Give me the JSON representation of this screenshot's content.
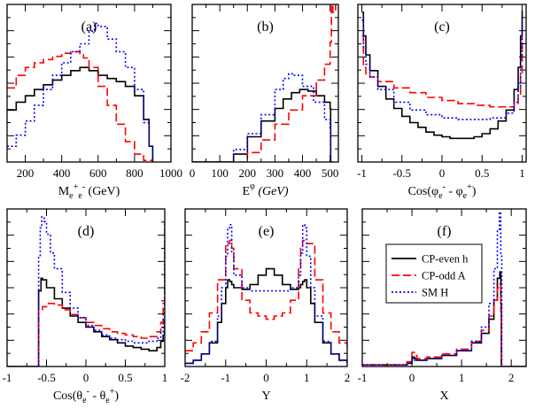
{
  "chart_data": [
    {
      "type": "line",
      "label": "(a)",
      "xlabel_main": "M",
      "xlabel_sub": "e",
      "xlabel_sup1": "+",
      "xlabel_sub2": "e",
      "xlabel_sup2": "-",
      "xlabel_unit": "(GeV)",
      "xlim": [
        100,
        1000
      ],
      "ylim": [
        0,
        1
      ],
      "xticks": [
        200,
        400,
        600,
        800,
        1000
      ],
      "xtick_labels": [
        "200",
        "400",
        "600",
        "800",
        "1000"
      ],
      "series": [
        {
          "name": "CP-even h",
          "x": [
            100,
            150,
            200,
            250,
            300,
            350,
            400,
            450,
            500,
            520,
            550,
            600,
            650,
            700,
            750,
            800,
            850,
            880,
            900
          ],
          "y": [
            0.33,
            0.38,
            0.42,
            0.46,
            0.49,
            0.52,
            0.55,
            0.58,
            0.6,
            0.6,
            0.58,
            0.55,
            0.53,
            0.51,
            0.48,
            0.42,
            0.27,
            0.1,
            0.0
          ]
        },
        {
          "name": "CP-odd A",
          "x": [
            100,
            150,
            200,
            250,
            300,
            350,
            400,
            450,
            500,
            520,
            550,
            600,
            650,
            700,
            750,
            800,
            850,
            900
          ],
          "y": [
            0.47,
            0.55,
            0.6,
            0.63,
            0.65,
            0.67,
            0.69,
            0.7,
            0.68,
            0.66,
            0.6,
            0.48,
            0.36,
            0.24,
            0.13,
            0.05,
            0.01,
            0.0
          ]
        },
        {
          "name": "SM H",
          "x": [
            100,
            150,
            200,
            250,
            300,
            350,
            400,
            450,
            500,
            550,
            580,
            600,
            650,
            700,
            750,
            800,
            850,
            880,
            900
          ],
          "y": [
            0.1,
            0.17,
            0.26,
            0.36,
            0.46,
            0.55,
            0.63,
            0.7,
            0.75,
            0.83,
            0.88,
            0.86,
            0.78,
            0.7,
            0.6,
            0.46,
            0.25,
            0.1,
            0.0
          ]
        }
      ]
    },
    {
      "type": "line",
      "label": "(b)",
      "xlabel_main": "E",
      "xlabel_sup1": "φ",
      "xlabel_unit": "(GeV)",
      "xlim": [
        0,
        530
      ],
      "ylim": [
        0,
        1
      ],
      "xticks": [
        0,
        100,
        200,
        300,
        400,
        500
      ],
      "xtick_labels": [
        "0",
        "100",
        "200",
        "300",
        "400",
        "500"
      ],
      "series": [
        {
          "name": "CP-even h",
          "x": [
            0,
            120,
            150,
            200,
            250,
            300,
            330,
            360,
            390,
            420,
            450,
            480,
            500,
            502,
            510
          ],
          "y": [
            0,
            0,
            0.05,
            0.16,
            0.26,
            0.34,
            0.4,
            0.44,
            0.46,
            0.45,
            0.42,
            0.38,
            0.34,
            0.0,
            0.0
          ]
        },
        {
          "name": "CP-odd A",
          "x": [
            0,
            150,
            200,
            250,
            300,
            350,
            400,
            450,
            480,
            500,
            505,
            510,
            520
          ],
          "y": [
            0,
            0,
            0.06,
            0.14,
            0.24,
            0.33,
            0.42,
            0.52,
            0.62,
            0.76,
            1.0,
            0.95,
            1.0
          ]
        },
        {
          "name": "SM H",
          "x": [
            0,
            110,
            150,
            200,
            250,
            300,
            330,
            350,
            370,
            400,
            440,
            480,
            500,
            502,
            510
          ],
          "y": [
            0,
            0,
            0.08,
            0.18,
            0.3,
            0.46,
            0.53,
            0.56,
            0.55,
            0.48,
            0.38,
            0.27,
            0.2,
            0.0,
            0.0
          ]
        }
      ]
    },
    {
      "type": "line",
      "label": "(c)",
      "xlabel_main": "Cos(φ",
      "xlabel_sub": "e",
      "xlabel_sup1": "-",
      "xlabel_mid": " - φ",
      "xlabel_sub2": "e",
      "xlabel_sup2": "+",
      "xlabel_unit": ")",
      "xlim": [
        -1.05,
        1.05
      ],
      "ylim": [
        0,
        1
      ],
      "xticks": [
        -1,
        -0.5,
        0,
        0.5,
        1
      ],
      "xtick_labels": [
        "-1",
        "-0.5",
        "0",
        "0.5",
        "1"
      ],
      "series": [
        {
          "name": "CP-even h",
          "x": [
            -1,
            -0.98,
            -0.95,
            -0.9,
            -0.8,
            -0.7,
            -0.6,
            -0.5,
            -0.4,
            -0.3,
            -0.2,
            -0.1,
            0,
            0.1,
            0.2,
            0.3,
            0.4,
            0.5,
            0.6,
            0.7,
            0.8,
            0.9,
            0.95,
            0.98,
            1
          ],
          "y": [
            0.95,
            0.8,
            0.68,
            0.58,
            0.48,
            0.4,
            0.34,
            0.29,
            0.25,
            0.22,
            0.19,
            0.17,
            0.16,
            0.15,
            0.15,
            0.15,
            0.16,
            0.18,
            0.21,
            0.26,
            0.33,
            0.46,
            0.6,
            0.8,
            0.96
          ]
        },
        {
          "name": "CP-odd A",
          "x": [
            -1,
            -0.98,
            -0.95,
            -0.9,
            -0.8,
            -0.6,
            -0.4,
            -0.2,
            0,
            0.2,
            0.4,
            0.6,
            0.8,
            0.9,
            0.95,
            0.98,
            1
          ],
          "y": [
            0.8,
            0.6,
            0.56,
            0.54,
            0.51,
            0.47,
            0.44,
            0.41,
            0.39,
            0.37,
            0.36,
            0.35,
            0.35,
            0.37,
            0.42,
            0.55,
            0.8
          ]
        },
        {
          "name": "SM H",
          "x": [
            -1,
            -0.98,
            -0.95,
            -0.9,
            -0.8,
            -0.6,
            -0.4,
            -0.2,
            0,
            0.2,
            0.4,
            0.6,
            0.8,
            0.9,
            0.95,
            0.98,
            1
          ],
          "y": [
            0.9,
            0.72,
            0.62,
            0.54,
            0.46,
            0.38,
            0.33,
            0.3,
            0.28,
            0.27,
            0.27,
            0.28,
            0.31,
            0.38,
            0.48,
            0.68,
            0.9
          ]
        }
      ]
    },
    {
      "type": "line",
      "label": "(d)",
      "xlabel_main": "Cos(θ",
      "xlabel_sub": "e",
      "xlabel_sup1": "-",
      "xlabel_mid": " - θ",
      "xlabel_sub2": "e",
      "xlabel_sup2": "+",
      "xlabel_unit": ")",
      "xlim": [
        -1,
        1
      ],
      "ylim": [
        0,
        1
      ],
      "xticks": [
        -1,
        -0.5,
        0,
        0.5,
        1
      ],
      "xtick_labels": [
        "-1",
        "-0.5",
        "0",
        "0.5",
        "1"
      ],
      "series": [
        {
          "name": "CP-even h",
          "x": [
            -1,
            -0.61,
            -0.6,
            -0.57,
            -0.55,
            -0.5,
            -0.4,
            -0.3,
            -0.2,
            -0.1,
            0,
            0.1,
            0.2,
            0.3,
            0.4,
            0.5,
            0.6,
            0.7,
            0.8,
            0.9,
            0.95,
            0.98,
            1
          ],
          "y": [
            0,
            0,
            0.48,
            0.56,
            0.55,
            0.5,
            0.43,
            0.37,
            0.32,
            0.28,
            0.25,
            0.22,
            0.19,
            0.17,
            0.15,
            0.13,
            0.12,
            0.11,
            0.1,
            0.12,
            0.16,
            0.2,
            0.3
          ]
        },
        {
          "name": "CP-odd A",
          "x": [
            -1,
            -0.61,
            -0.6,
            -0.55,
            -0.5,
            -0.4,
            -0.3,
            -0.2,
            -0.1,
            0,
            0.1,
            0.2,
            0.3,
            0.4,
            0.5,
            0.6,
            0.7,
            0.8,
            0.9,
            0.95,
            0.98,
            1
          ],
          "y": [
            0,
            0,
            0.36,
            0.38,
            0.4,
            0.39,
            0.36,
            0.33,
            0.31,
            0.28,
            0.26,
            0.24,
            0.22,
            0.21,
            0.2,
            0.19,
            0.18,
            0.19,
            0.22,
            0.28,
            0.4,
            0.92
          ]
        },
        {
          "name": "SM H",
          "x": [
            -1,
            -0.61,
            -0.6,
            -0.58,
            -0.56,
            -0.53,
            -0.5,
            -0.45,
            -0.4,
            -0.3,
            -0.2,
            -0.1,
            0,
            0.1,
            0.2,
            0.3,
            0.4,
            0.5,
            0.6,
            0.7,
            0.8,
            0.9,
            0.95,
            0.98,
            1
          ],
          "y": [
            0,
            0,
            0.7,
            0.88,
            0.95,
            0.92,
            0.84,
            0.72,
            0.62,
            0.47,
            0.37,
            0.31,
            0.26,
            0.23,
            0.2,
            0.18,
            0.17,
            0.16,
            0.15,
            0.15,
            0.16,
            0.18,
            0.22,
            0.3,
            0.9
          ]
        }
      ]
    },
    {
      "type": "line",
      "label": "(e)",
      "xlabel_main": "Y",
      "xlim": [
        -2,
        2
      ],
      "ylim": [
        0,
        1
      ],
      "xticks": [
        -2,
        -1,
        0,
        1,
        2
      ],
      "xtick_labels": [
        "-2",
        "-1",
        "0",
        "1",
        "2"
      ],
      "series": [
        {
          "name": "CP-even h",
          "x": [
            -2,
            -1.8,
            -1.6,
            -1.4,
            -1.2,
            -1.1,
            -1.0,
            -0.95,
            -0.9,
            -0.85,
            -0.8,
            -0.6,
            -0.4,
            -0.2,
            0,
            0.2,
            0.4,
            0.6,
            0.8,
            0.85,
            0.9,
            0.95,
            1.0,
            1.1,
            1.2,
            1.4,
            1.6,
            1.8,
            2
          ],
          "y": [
            0.02,
            0.04,
            0.08,
            0.15,
            0.28,
            0.4,
            0.5,
            0.55,
            0.54,
            0.52,
            0.5,
            0.49,
            0.52,
            0.58,
            0.62,
            0.58,
            0.52,
            0.49,
            0.5,
            0.52,
            0.54,
            0.55,
            0.5,
            0.4,
            0.28,
            0.15,
            0.08,
            0.04,
            0.02
          ]
        },
        {
          "name": "CP-odd A",
          "x": [
            -2,
            -1.8,
            -1.6,
            -1.4,
            -1.2,
            -1.0,
            -0.9,
            -0.85,
            -0.8,
            -0.6,
            -0.4,
            -0.2,
            0,
            0.2,
            0.4,
            0.6,
            0.8,
            0.85,
            0.9,
            1.0,
            1.2,
            1.4,
            1.6,
            1.8,
            2
          ],
          "y": [
            0.1,
            0.15,
            0.22,
            0.34,
            0.55,
            0.78,
            0.8,
            0.75,
            0.62,
            0.42,
            0.34,
            0.32,
            0.3,
            0.32,
            0.34,
            0.42,
            0.62,
            0.75,
            0.8,
            0.78,
            0.55,
            0.34,
            0.22,
            0.15,
            0.1
          ]
        },
        {
          "name": "SM H",
          "x": [
            -2,
            -1.8,
            -1.6,
            -1.4,
            -1.2,
            -1.1,
            -1.0,
            -0.95,
            -0.9,
            -0.85,
            -0.8,
            -0.6,
            -0.4,
            -0.2,
            0,
            0.2,
            0.4,
            0.6,
            0.8,
            0.85,
            0.9,
            0.95,
            1.0,
            1.1,
            1.2,
            1.4,
            1.6,
            1.8,
            2
          ],
          "y": [
            0.02,
            0.04,
            0.08,
            0.16,
            0.32,
            0.5,
            0.7,
            0.88,
            0.9,
            0.72,
            0.58,
            0.5,
            0.48,
            0.48,
            0.48,
            0.48,
            0.48,
            0.5,
            0.58,
            0.72,
            0.9,
            0.88,
            0.7,
            0.5,
            0.32,
            0.16,
            0.08,
            0.04,
            0.02
          ]
        }
      ]
    },
    {
      "type": "line",
      "label": "(f)",
      "xlabel_main": "X",
      "xlim": [
        -1,
        2.3
      ],
      "ylim": [
        0,
        1
      ],
      "xticks": [
        -1,
        0,
        1,
        2
      ],
      "xtick_labels": [
        "-1",
        "0",
        "1",
        "2"
      ],
      "series": [
        {
          "name": "CP-even h",
          "x": [
            -1,
            -0.5,
            -0.1,
            0,
            0.05,
            0.1,
            0.3,
            0.6,
            0.9,
            1.2,
            1.4,
            1.55,
            1.65,
            1.72,
            1.77,
            1.79,
            1.8,
            2.3
          ],
          "y": [
            0.01,
            0.01,
            0.02,
            0.06,
            0.05,
            0.04,
            0.05,
            0.07,
            0.1,
            0.15,
            0.21,
            0.3,
            0.42,
            0.56,
            0.6,
            0.4,
            0.0,
            0.0
          ]
        },
        {
          "name": "CP-odd A",
          "x": [
            -1,
            -0.5,
            -0.1,
            0,
            0.05,
            0.1,
            0.3,
            0.6,
            0.9,
            1.2,
            1.4,
            1.55,
            1.65,
            1.72,
            1.77,
            1.79,
            1.8,
            2.3
          ],
          "y": [
            0.01,
            0.01,
            0.03,
            0.09,
            0.07,
            0.05,
            0.06,
            0.08,
            0.11,
            0.16,
            0.23,
            0.32,
            0.42,
            0.5,
            0.52,
            0.35,
            0.0,
            0.0
          ]
        },
        {
          "name": "SM H",
          "x": [
            -1,
            -0.5,
            -0.1,
            0,
            0.05,
            0.1,
            0.3,
            0.6,
            0.9,
            1.2,
            1.4,
            1.55,
            1.65,
            1.72,
            1.76,
            1.79,
            1.81,
            2.3
          ],
          "y": [
            0.01,
            0.01,
            0.02,
            0.05,
            0.04,
            0.04,
            0.05,
            0.07,
            0.1,
            0.16,
            0.25,
            0.4,
            0.62,
            0.86,
            0.98,
            0.7,
            0.0,
            0.0
          ]
        }
      ]
    }
  ],
  "legend": {
    "entries": [
      {
        "name": "CP-even h",
        "color": "#000000",
        "dash": "solid"
      },
      {
        "name": "CP-odd A",
        "color": "#ff0000",
        "dash": "dashed"
      },
      {
        "name": "SM H",
        "color": "#0000ff",
        "dash": "dotted"
      }
    ]
  },
  "style": {
    "colors": {
      "CP-even h": "#000000",
      "CP-odd A": "#ff0000",
      "SM H": "#0000ff"
    }
  }
}
